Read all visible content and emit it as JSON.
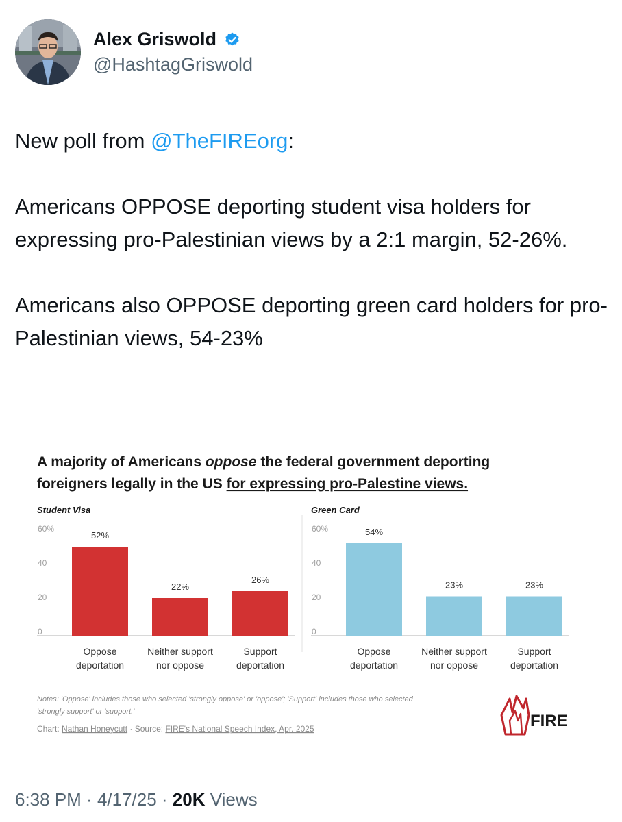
{
  "author": {
    "display_name": "Alex Griswold",
    "handle": "@HashtagGriswold",
    "verified": true,
    "avatar_icon": "profile-photo"
  },
  "tweet": {
    "intro_prefix": "New poll from ",
    "mention": "@TheFIREorg",
    "intro_suffix": ":",
    "paragraph_2": "Americans OPPOSE deporting student visa holders for expressing pro-Palestinian views by a 2:1 margin, 52-26%.",
    "paragraph_3": "Americans also OPPOSE deporting green card holders for pro-Palestinian views, 54-23%"
  },
  "footer": {
    "time": "6:38 PM",
    "sep1": " · ",
    "date": "4/17/25",
    "sep2": " · ",
    "views_count": "20K",
    "views_label": " Views"
  },
  "chart_heading": {
    "part1": "A majority of Americans ",
    "part2_italic": "oppose",
    "part3": " the federal government deporting",
    "line2_prefix": "foreigners legally in the US ",
    "line2_underlined": "for expressing pro-Palestine views."
  },
  "chart_notes": {
    "line1": "Notes: 'Oppose' includes those who selected 'strongly oppose' or 'oppose'; 'Support' includes those who selected",
    "line2": "'strongly support' or 'support.'",
    "credit_prefix": "Chart: ",
    "credit_author": "Nathan Honeycutt",
    "credit_mid": " · Source: ",
    "credit_source": "FIRE's National Speech Index, Apr. 2025"
  },
  "logo": {
    "text": "FIRE",
    "color": "#c0272d"
  },
  "colors": {
    "red_bar": "#d23232",
    "blue_bar": "#8ecae0",
    "mention": "#1d9bf0"
  },
  "chart_data": [
    {
      "type": "bar",
      "title": "Student Visa",
      "categories": [
        [
          "Oppose",
          "deportation"
        ],
        [
          "Neither support",
          "nor oppose"
        ],
        [
          "Support",
          "deportation"
        ]
      ],
      "values": [
        52,
        22,
        26
      ],
      "value_labels": [
        "52%",
        "22%",
        "26%"
      ],
      "ylim": [
        0,
        60
      ],
      "yticks": [
        "60%",
        "40",
        "20",
        "0"
      ],
      "ytick_values": [
        60,
        40,
        20,
        0
      ],
      "color": "#d23232",
      "grid": false
    },
    {
      "type": "bar",
      "title": "Green Card",
      "categories": [
        [
          "Oppose",
          "deportation"
        ],
        [
          "Neither support",
          "nor oppose"
        ],
        [
          "Support",
          "deportation"
        ]
      ],
      "values": [
        54,
        23,
        23
      ],
      "value_labels": [
        "54%",
        "23%",
        "23%"
      ],
      "ylim": [
        0,
        60
      ],
      "yticks": [
        "60%",
        "40",
        "20",
        "0"
      ],
      "ytick_values": [
        60,
        40,
        20,
        0
      ],
      "color": "#8ecae0",
      "grid": false
    }
  ]
}
